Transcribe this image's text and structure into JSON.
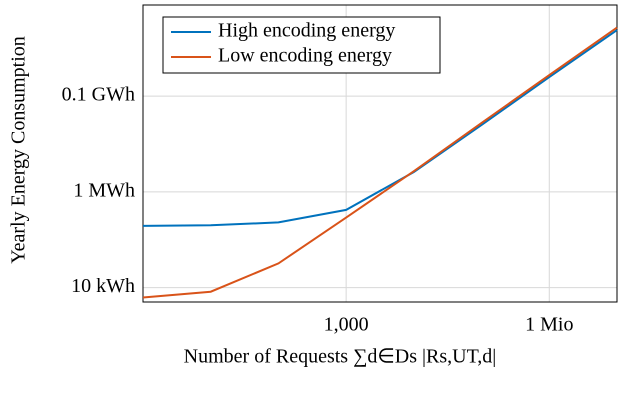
{
  "chart_data": {
    "type": "line",
    "x_label": "Number of Requests ∑d∈Ds |Rs,UT,d|",
    "y_label": "Yearly Energy Consumption",
    "x": [
      1,
      10,
      100,
      1000,
      10000,
      100000,
      1000000,
      10000000
    ],
    "series": [
      {
        "name": "High encoding energy",
        "color": "#0072bd",
        "values": [
          195000,
          200000,
          230000,
          420000,
          2600000,
          25000000,
          250000000,
          2400000000
        ]
      },
      {
        "name": "Low encoding energy",
        "color": "#d95319",
        "values": [
          6200,
          8200,
          32000,
          290000,
          2700000,
          27500000,
          275000000,
          2700000000
        ]
      }
    ],
    "xlim": [
      1,
      10000000
    ],
    "ylim": [
      5000,
      8000000000
    ],
    "xticks": [
      {
        "value": 1000,
        "label": "1,000"
      },
      {
        "value": 1000000,
        "label": "1 Mio"
      }
    ],
    "yticks": [
      {
        "value": 10000,
        "label": "10 kWh"
      },
      {
        "value": 1000000,
        "label": "1 MWh"
      },
      {
        "value": 100000000,
        "label": "0.1 GWh"
      }
    ],
    "log_x": true,
    "log_y": true,
    "grid": true,
    "legend": "top-left"
  }
}
